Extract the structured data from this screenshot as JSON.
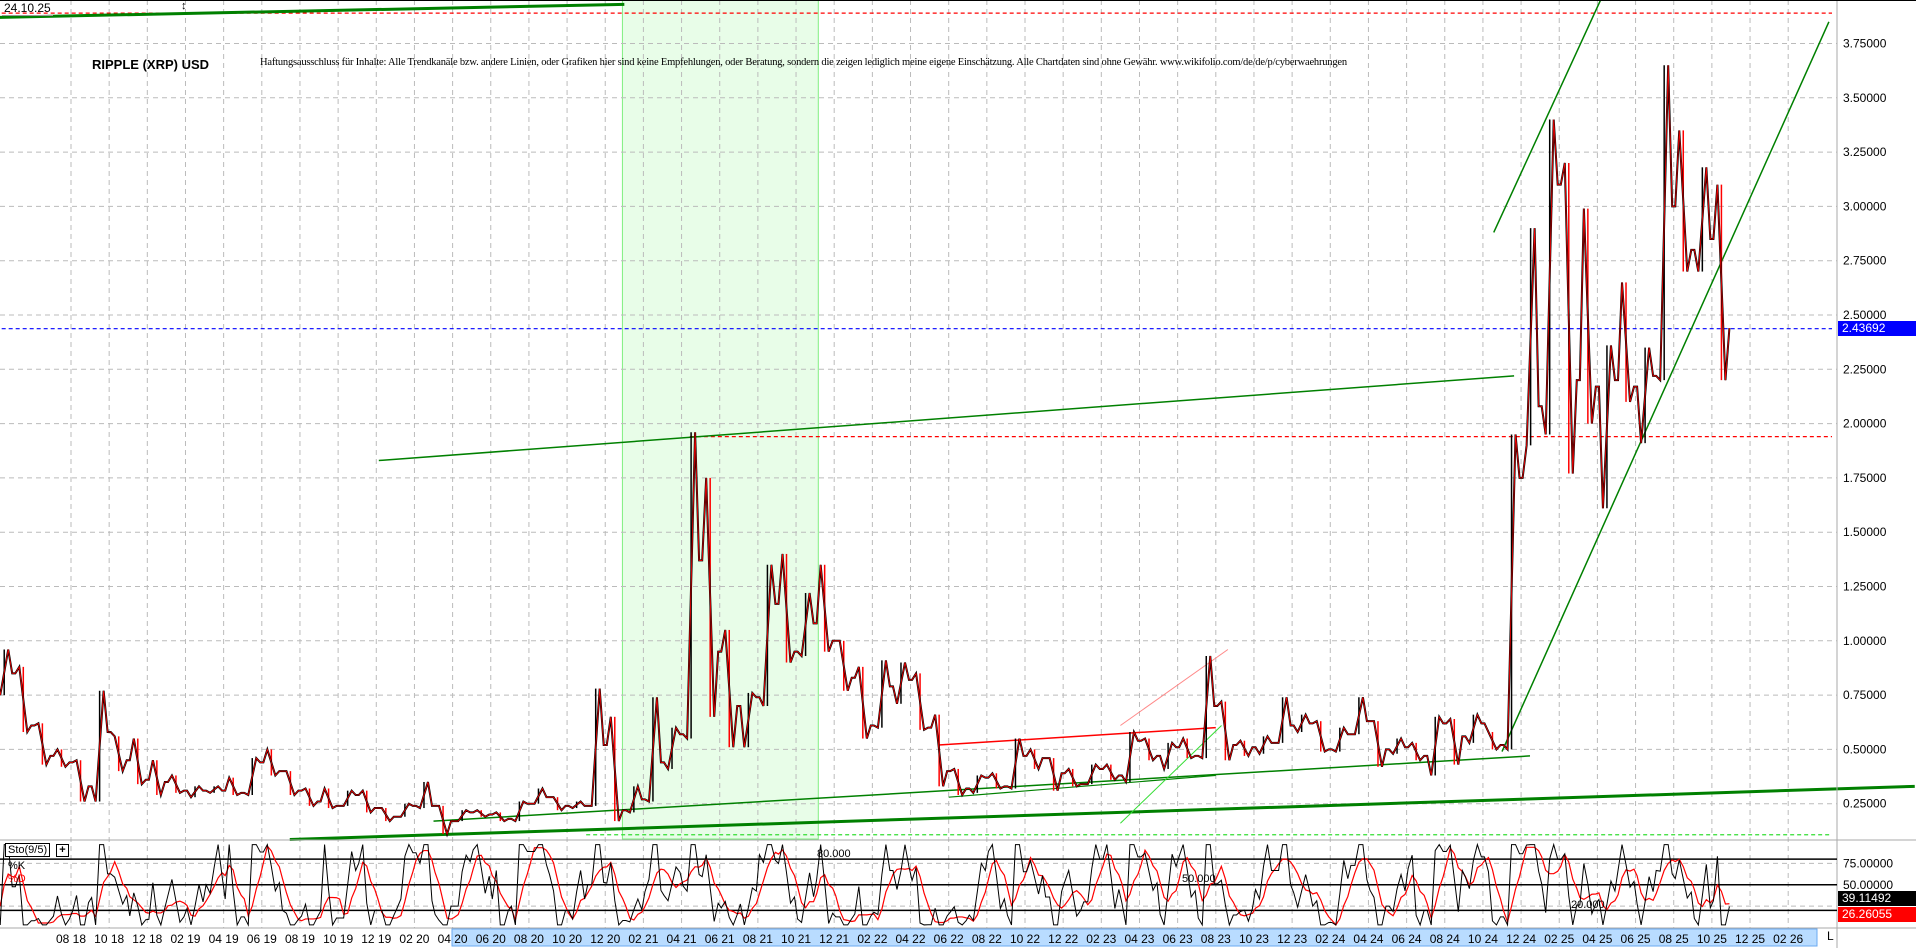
{
  "header": {
    "date": "24.10.25",
    "title": "RIPPLE (XRP) USD",
    "disclaimer": "Haftungsausschluss für Inhalte: Alle Trendkanäle bzw. andere Linien, oder Grafiken hier sind keine Empfehlungen, oder Beratung, sondern die zeigen lediglich meine eigene Einschätzung. Alle Chartdaten sind ohne Gewähr.  www.wikifolio.com/de/de/p/cyberwaehrungen"
  },
  "colors": {
    "up": "#000000",
    "down": "#ff0000",
    "trend": "#008000",
    "light_trend": "#33dd33",
    "red_line": "#ff0000",
    "pink_line": "#ff8888",
    "current_price": "#0000ff",
    "shade": "#e8fde8"
  },
  "chart_data": [
    {
      "type": "candlestick",
      "title": "RIPPLE (XRP) USD",
      "ylim": [
        0,
        3.95
      ],
      "yticks": [
        "0.25000",
        "0.50000",
        "0.75000",
        "1.00000",
        "1.25000",
        "1.50000",
        "1.75000",
        "2.00000",
        "2.25000",
        "2.50000",
        "2.75000",
        "3.00000",
        "3.25000",
        "3.50000",
        "3.75000"
      ],
      "ytick_values": [
        0.25,
        0.5,
        0.75,
        1.0,
        1.25,
        1.5,
        1.75,
        2.0,
        2.25,
        2.5,
        2.75,
        3.0,
        3.25,
        3.5,
        3.75
      ],
      "xticks": [
        "08 18",
        "10 18",
        "12 18",
        "02 19",
        "04 19",
        "06 19",
        "08 19",
        "10 19",
        "12 19",
        "02 20",
        "04 20",
        "06 20",
        "08 20",
        "10 20",
        "12 20",
        "02 21",
        "04 21",
        "06 21",
        "08 21",
        "10 21",
        "12 21",
        "02 22",
        "04 22",
        "06 22",
        "08 22",
        "10 22",
        "12 22",
        "02 23",
        "04 23",
        "06 23",
        "08 23",
        "10 23",
        "12 23",
        "02 24",
        "04 24",
        "06 24",
        "08 24",
        "10 24",
        "12 24",
        "02 25",
        "04 25",
        "06 25",
        "08 25",
        "10 25",
        "12 25",
        "02 26"
      ],
      "grid": true,
      "current_price": "2.43692",
      "current_price_value": 2.43692,
      "columns": [
        "month",
        "high",
        "low",
        "close"
      ],
      "monthly": [
        [
          "2018-04",
          0.96,
          0.75,
          0.85
        ],
        [
          "2018-05",
          0.88,
          0.58,
          0.61
        ],
        [
          "2018-06",
          0.62,
          0.43,
          0.47
        ],
        [
          "2018-07",
          0.5,
          0.42,
          0.44
        ],
        [
          "2018-08",
          0.45,
          0.26,
          0.33
        ],
        [
          "2018-09",
          0.77,
          0.26,
          0.58
        ],
        [
          "2018-10",
          0.56,
          0.4,
          0.45
        ],
        [
          "2018-11",
          0.55,
          0.34,
          0.36
        ],
        [
          "2018-12",
          0.45,
          0.29,
          0.35
        ],
        [
          "2019-01",
          0.38,
          0.3,
          0.31
        ],
        [
          "2019-02",
          0.33,
          0.28,
          0.31
        ],
        [
          "2019-03",
          0.33,
          0.3,
          0.31
        ],
        [
          "2019-04",
          0.37,
          0.29,
          0.3
        ],
        [
          "2019-05",
          0.46,
          0.29,
          0.44
        ],
        [
          "2019-06",
          0.5,
          0.38,
          0.4
        ],
        [
          "2019-07",
          0.4,
          0.29,
          0.31
        ],
        [
          "2019-08",
          0.32,
          0.24,
          0.26
        ],
        [
          "2019-09",
          0.32,
          0.23,
          0.24
        ],
        [
          "2019-10",
          0.31,
          0.24,
          0.29
        ],
        [
          "2019-11",
          0.31,
          0.21,
          0.23
        ],
        [
          "2019-12",
          0.23,
          0.17,
          0.19
        ],
        [
          "2020-01",
          0.25,
          0.19,
          0.24
        ],
        [
          "2020-02",
          0.35,
          0.23,
          0.24
        ],
        [
          "2020-03",
          0.24,
          0.11,
          0.17
        ],
        [
          "2020-04",
          0.22,
          0.17,
          0.21
        ],
        [
          "2020-05",
          0.22,
          0.19,
          0.2
        ],
        [
          "2020-06",
          0.21,
          0.17,
          0.18
        ],
        [
          "2020-07",
          0.26,
          0.17,
          0.25
        ],
        [
          "2020-08",
          0.32,
          0.25,
          0.28
        ],
        [
          "2020-09",
          0.28,
          0.22,
          0.24
        ],
        [
          "2020-10",
          0.26,
          0.23,
          0.24
        ],
        [
          "2020-11",
          0.78,
          0.24,
          0.52
        ],
        [
          "2020-12",
          0.65,
          0.17,
          0.22
        ],
        [
          "2021-01",
          0.33,
          0.21,
          0.27
        ],
        [
          "2021-02",
          0.74,
          0.26,
          0.44
        ],
        [
          "2021-03",
          0.6,
          0.41,
          0.57
        ],
        [
          "2021-04",
          1.96,
          0.55,
          1.37
        ],
        [
          "2021-05",
          1.75,
          0.65,
          0.95
        ],
        [
          "2021-06",
          1.05,
          0.51,
          0.7
        ],
        [
          "2021-07",
          0.76,
          0.51,
          0.74
        ],
        [
          "2021-08",
          1.35,
          0.7,
          1.17
        ],
        [
          "2021-09",
          1.4,
          0.9,
          0.95
        ],
        [
          "2021-10",
          1.22,
          0.93,
          1.08
        ],
        [
          "2021-11",
          1.35,
          0.95,
          1.0
        ],
        [
          "2021-12",
          1.0,
          0.77,
          0.83
        ],
        [
          "2022-01",
          0.88,
          0.55,
          0.61
        ],
        [
          "2022-02",
          0.91,
          0.6,
          0.79
        ],
        [
          "2022-03",
          0.9,
          0.71,
          0.82
        ],
        [
          "2022-04",
          0.85,
          0.59,
          0.6
        ],
        [
          "2022-05",
          0.66,
          0.33,
          0.4
        ],
        [
          "2022-06",
          0.41,
          0.29,
          0.32
        ],
        [
          "2022-07",
          0.38,
          0.3,
          0.37
        ],
        [
          "2022-08",
          0.39,
          0.32,
          0.33
        ],
        [
          "2022-09",
          0.55,
          0.32,
          0.47
        ],
        [
          "2022-10",
          0.5,
          0.41,
          0.46
        ],
        [
          "2022-11",
          0.46,
          0.31,
          0.39
        ],
        [
          "2022-12",
          0.41,
          0.33,
          0.34
        ],
        [
          "2023-01",
          0.43,
          0.34,
          0.41
        ],
        [
          "2023-02",
          0.43,
          0.36,
          0.38
        ],
        [
          "2023-03",
          0.58,
          0.35,
          0.54
        ],
        [
          "2023-04",
          0.55,
          0.45,
          0.47
        ],
        [
          "2023-05",
          0.53,
          0.41,
          0.51
        ],
        [
          "2023-06",
          0.55,
          0.46,
          0.47
        ],
        [
          "2023-07",
          0.93,
          0.46,
          0.7
        ],
        [
          "2023-08",
          0.72,
          0.45,
          0.52
        ],
        [
          "2023-09",
          0.54,
          0.47,
          0.51
        ],
        [
          "2023-10",
          0.56,
          0.48,
          0.53
        ],
        [
          "2023-11",
          0.74,
          0.53,
          0.61
        ],
        [
          "2023-12",
          0.66,
          0.58,
          0.62
        ],
        [
          "2024-01",
          0.63,
          0.49,
          0.5
        ],
        [
          "2024-02",
          0.6,
          0.49,
          0.57
        ],
        [
          "2024-03",
          0.74,
          0.57,
          0.63
        ],
        [
          "2024-04",
          0.63,
          0.42,
          0.5
        ],
        [
          "2024-05",
          0.55,
          0.48,
          0.51
        ],
        [
          "2024-06",
          0.53,
          0.45,
          0.47
        ],
        [
          "2024-07",
          0.65,
          0.38,
          0.62
        ],
        [
          "2024-08",
          0.64,
          0.43,
          0.56
        ],
        [
          "2024-09",
          0.66,
          0.53,
          0.62
        ],
        [
          "2024-10",
          0.58,
          0.5,
          0.52
        ],
        [
          "2024-11",
          1.95,
          0.5,
          1.75
        ],
        [
          "2024-12",
          2.9,
          1.9,
          2.08
        ],
        [
          "2025-01",
          3.4,
          1.95,
          3.1
        ],
        [
          "2025-02",
          3.2,
          1.77,
          2.2
        ],
        [
          "2025-03",
          2.99,
          2.0,
          2.17
        ],
        [
          "2025-04",
          2.36,
          1.61,
          2.2
        ],
        [
          "2025-05",
          2.65,
          2.1,
          2.17
        ],
        [
          "2025-06",
          2.35,
          1.91,
          2.22
        ],
        [
          "2025-07",
          3.65,
          2.2,
          3.0
        ],
        [
          "2025-08",
          3.35,
          2.7,
          2.8
        ],
        [
          "2025-09",
          3.18,
          2.7,
          2.85
        ],
        [
          "2025-10",
          3.1,
          2.2,
          2.44
        ]
      ],
      "shaded_range": [
        "2020-12-28",
        "2021-11-06"
      ],
      "trendlines": [
        {
          "from": [
            "2019-07-15",
            0.085
          ],
          "to": [
            "2026-08-20",
            0.33
          ],
          "color": "trend",
          "width": 3
        },
        {
          "from": [
            "2018-04-01",
            3.87
          ],
          "to": [
            "2021-01-01",
            3.93
          ],
          "color": "trend",
          "width": 3
        },
        {
          "from": [
            "2019-12-05",
            1.83
          ],
          "to": [
            "2024-11-20",
            2.22
          ],
          "color": "trend",
          "width": 1.5
        },
        {
          "from": [
            "2020-03-01",
            0.17
          ],
          "to": [
            "2024-12-15",
            0.47
          ],
          "color": "trend",
          "width": 1.5
        },
        {
          "from": [
            "2022-06-01",
            0.28
          ],
          "to": [
            "2023-08-01",
            0.38
          ],
          "color": "trend",
          "width": 1.2
        },
        {
          "from": [
            "2024-11-01",
            0.49
          ],
          "to": [
            "2026-04-05",
            3.85
          ],
          "color": "trend",
          "width": 1.5
        },
        {
          "from": [
            "2024-10-18",
            2.88
          ],
          "to": [
            "2025-04-06",
            3.95
          ],
          "color": "trend",
          "width": 1.5
        },
        {
          "from": [
            "2022-05-15",
            0.52
          ],
          "to": [
            "2023-08-01",
            0.6
          ],
          "color": "red_line",
          "width": 1.5
        },
        {
          "from": [
            "2023-03-01",
            0.61
          ],
          "to": [
            "2023-08-20",
            0.96
          ],
          "color": "pink_line",
          "width": 1
        },
        {
          "from": [
            "2023-03-01",
            0.16
          ],
          "to": [
            "2023-08-10",
            0.61
          ],
          "color": "light_trend",
          "width": 1
        }
      ],
      "hlines": [
        {
          "price": 3.89,
          "from": "2018-04-01",
          "color": "red_line",
          "style": "dotted"
        },
        {
          "price": 1.94,
          "from": "2021-04-14",
          "color": "red_line",
          "style": "dotted"
        },
        {
          "price": 0.107,
          "from": "2020-11-01",
          "color": "light_trend",
          "style": "dotted"
        },
        {
          "price": 2.43692,
          "from": "2018-04-01",
          "color": "current_price",
          "style": "dotted"
        }
      ]
    },
    {
      "type": "line",
      "title": "Sto(9/5)",
      "series": [
        {
          "name": "%K",
          "color": "#000000"
        },
        {
          "name": "%D",
          "color": "#ff0000"
        }
      ],
      "ylim": [
        0,
        100
      ],
      "levels": [
        "80.000",
        "50.000",
        "20.000"
      ],
      "level_values": [
        80,
        50,
        20
      ],
      "yticks": [
        "75.00000",
        "50.00000"
      ],
      "ytick_values": [
        75,
        50
      ],
      "last_k": "39.11492",
      "last_d": "26.26055"
    }
  ],
  "axis": {
    "right_label": "L"
  }
}
